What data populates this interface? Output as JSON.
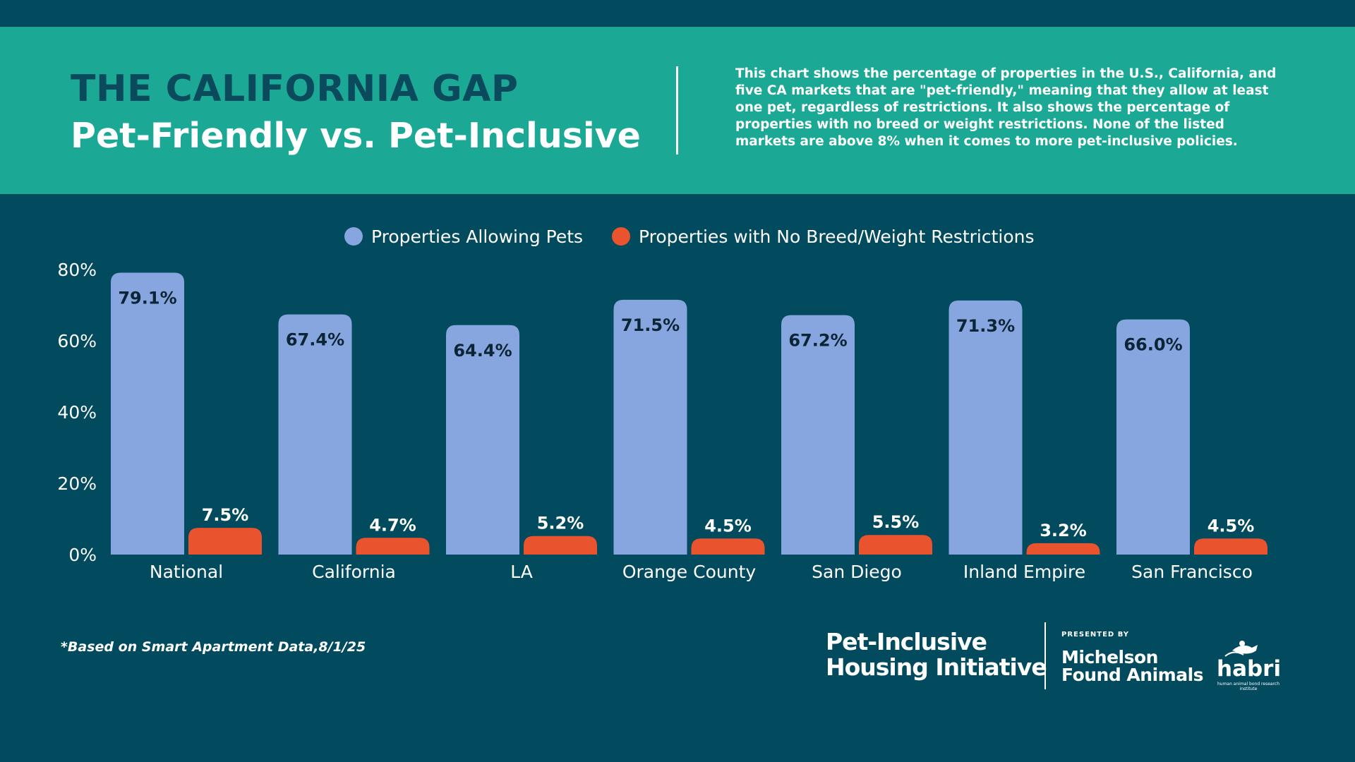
{
  "header": {
    "title": "THE CALIFORNIA GAP",
    "subtitle": "Pet-Friendly vs. Pet-Inclusive",
    "description": "This chart shows the percentage of properties in the U.S., California, and five CA markets that are \"pet-friendly,\" meaning that they allow at least one pet, regardless of restrictions. It also shows the percentage of properties with no breed or weight restrictions. None of the listed markets are above 8% when it comes to more pet-inclusive policies."
  },
  "colors": {
    "background": "#024a5e",
    "header_band": "#1ba996",
    "allowing_pets": "#87a5de",
    "no_restrictions": "#e9542f"
  },
  "chart_data": {
    "type": "bar",
    "categories": [
      "National",
      "California",
      "LA",
      "Orange County",
      "San Diego",
      "Inland Empire",
      "San Francisco"
    ],
    "series": [
      {
        "name": "Properties Allowing Pets",
        "values": [
          79.1,
          67.4,
          64.4,
          71.5,
          67.2,
          71.3,
          66.0
        ],
        "labels": [
          "79.1%",
          "67.4%",
          "64.4%",
          "71.5%",
          "67.2%",
          "71.3%",
          "66.0%"
        ],
        "color": "#87a5de"
      },
      {
        "name": "Properties with No Breed/Weight Restrictions",
        "values": [
          7.5,
          4.7,
          5.2,
          4.5,
          5.5,
          3.2,
          4.5
        ],
        "labels": [
          "7.5%",
          "4.7%",
          "5.2%",
          "4.5%",
          "5.5%",
          "3.2%",
          "4.5%"
        ],
        "color": "#e9542f"
      }
    ],
    "yticks": [
      "0%",
      "20%",
      "40%",
      "60%",
      "80%"
    ],
    "ylim": [
      0,
      80
    ],
    "grid": false,
    "legend": "top-center"
  },
  "footer": {
    "footnote": "*Based on Smart Apartment Data,8/1/25",
    "logo_line1": "Pet-Inclusive",
    "logo_line2": "Housing Initiative",
    "presented_by": "PRESENTED BY",
    "michelson_line1": "Michelson",
    "michelson_line2": "Found Animals",
    "habri": "habri",
    "habri_tagline": "human animal bond research institute"
  }
}
